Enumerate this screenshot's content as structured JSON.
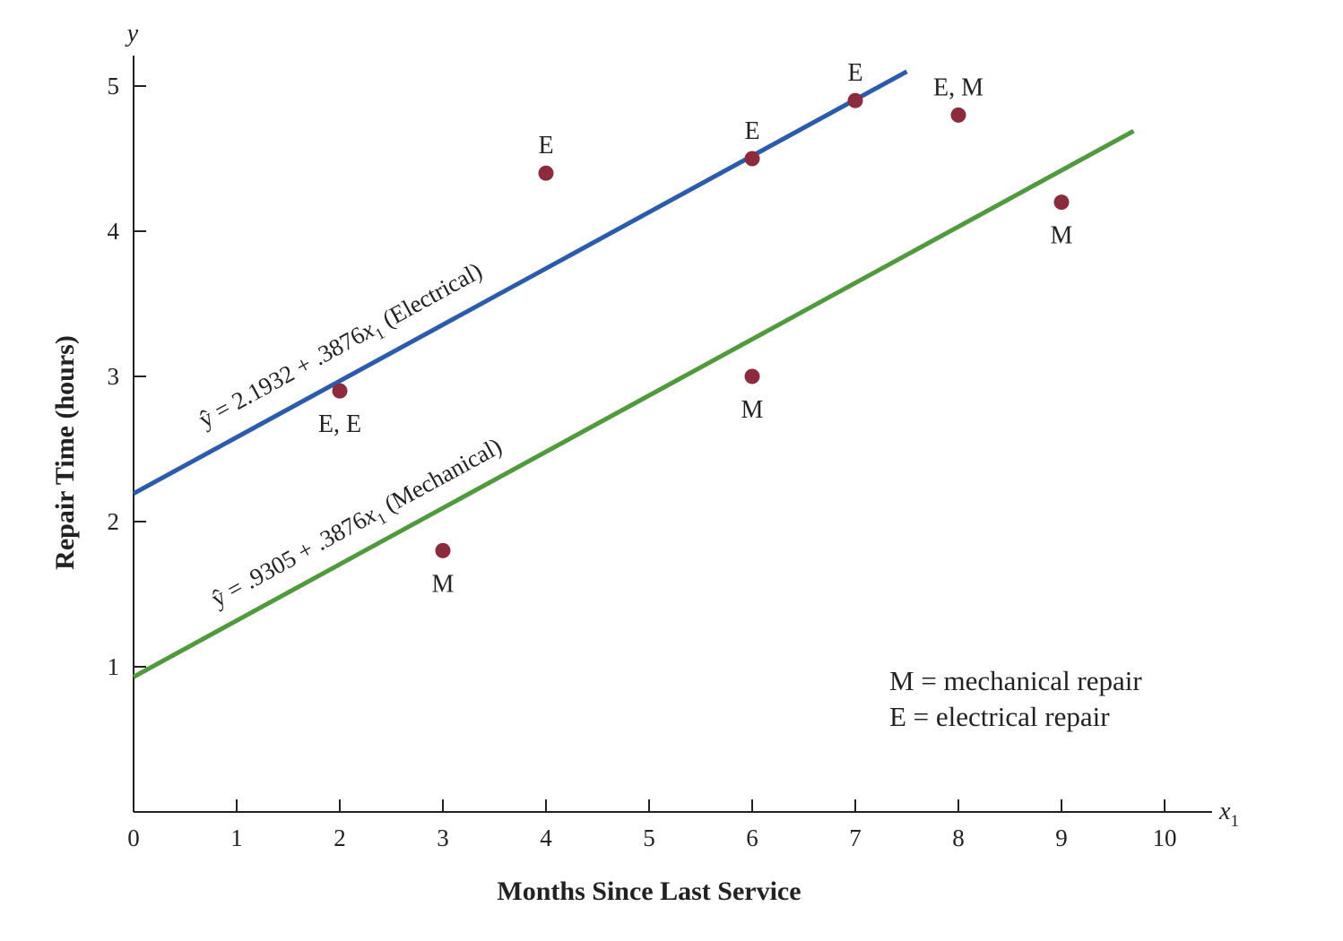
{
  "chart_data": {
    "type": "scatter",
    "xlabel": "Months Since Last Service",
    "ylabel": "Repair Time (hours)",
    "x_axis_symbol": "x",
    "x_axis_subscript": "1",
    "y_axis_symbol": "y",
    "xlim": [
      0,
      10.5
    ],
    "ylim": [
      0,
      5.2
    ],
    "xticks": [
      0,
      1,
      2,
      3,
      4,
      5,
      6,
      7,
      8,
      9,
      10
    ],
    "yticks": [
      1,
      2,
      3,
      4,
      5
    ],
    "grid": false,
    "colors": {
      "electrical_line": "#2b5cab",
      "mechanical_line": "#4e9a3c",
      "points": "#8c2a3e"
    },
    "points": [
      {
        "x": 2,
        "y": 2.9,
        "label": "E, E",
        "label_pos": "below"
      },
      {
        "x": 3,
        "y": 1.8,
        "label": "M",
        "label_pos": "below"
      },
      {
        "x": 4,
        "y": 4.4,
        "label": "E",
        "label_pos": "above"
      },
      {
        "x": 6,
        "y": 4.5,
        "label": "E",
        "label_pos": "above"
      },
      {
        "x": 6,
        "y": 3.0,
        "label": "M",
        "label_pos": "below"
      },
      {
        "x": 7,
        "y": 4.9,
        "label": "E",
        "label_pos": "above"
      },
      {
        "x": 8,
        "y": 4.8,
        "label": "E, M",
        "label_pos": "above"
      },
      {
        "x": 9,
        "y": 4.2,
        "label": "M",
        "label_pos": "below"
      }
    ],
    "lines": [
      {
        "name": "Electrical",
        "intercept": 2.1932,
        "slope": 0.3876,
        "x_range": [
          0,
          7.5
        ],
        "equation": {
          "lhs": "ŷ = 2.1932 + .3876",
          "var": "x",
          "sub": "1",
          "tail": " (Electrical)"
        }
      },
      {
        "name": "Mechanical",
        "intercept": 0.9305,
        "slope": 0.3876,
        "x_range": [
          0,
          9.7
        ],
        "equation": {
          "lhs": "ŷ = .9305 + .3876",
          "var": "x",
          "sub": "1",
          "tail": " (Mechanical)"
        }
      }
    ],
    "legend": [
      "M = mechanical repair",
      "E = electrical repair"
    ],
    "legend_position": "bottom-right"
  }
}
